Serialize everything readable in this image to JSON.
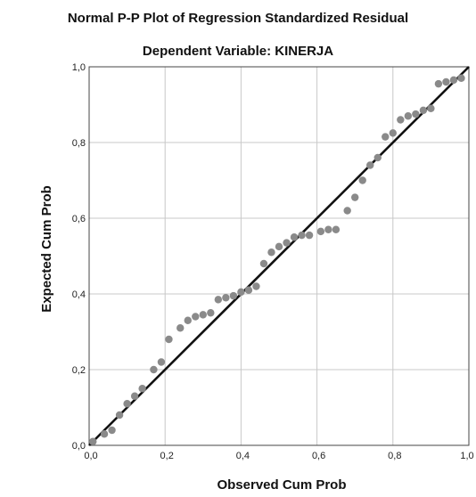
{
  "chart_data": {
    "type": "scatter",
    "title": "Normal P-P Plot of Regression Standardized Residual",
    "subtitle": "Dependent Variable: KINERJA",
    "xlabel": "Observed Cum Prob",
    "ylabel": "Expected Cum Prob",
    "xlim": [
      0,
      1
    ],
    "ylim": [
      0,
      1
    ],
    "x_tick_labels": [
      "0,0",
      "0,2",
      "0,4",
      "0,6",
      "0,8",
      "1,0"
    ],
    "y_tick_labels": [
      "0,0",
      "0,2",
      "0,4",
      "0,6",
      "0,8",
      "1,0"
    ],
    "ticks": [
      0,
      0.2,
      0.4,
      0.6,
      0.8,
      1.0
    ],
    "grid": true,
    "reference_line": [
      [
        0,
        0
      ],
      [
        1,
        1
      ]
    ],
    "marker_color": "#8a8a8a",
    "line_color": "#111111",
    "points": [
      {
        "x": 0.01,
        "y": 0.01
      },
      {
        "x": 0.04,
        "y": 0.03
      },
      {
        "x": 0.06,
        "y": 0.04
      },
      {
        "x": 0.08,
        "y": 0.08
      },
      {
        "x": 0.1,
        "y": 0.11
      },
      {
        "x": 0.12,
        "y": 0.13
      },
      {
        "x": 0.14,
        "y": 0.15
      },
      {
        "x": 0.17,
        "y": 0.2
      },
      {
        "x": 0.19,
        "y": 0.22
      },
      {
        "x": 0.21,
        "y": 0.28
      },
      {
        "x": 0.24,
        "y": 0.31
      },
      {
        "x": 0.26,
        "y": 0.33
      },
      {
        "x": 0.28,
        "y": 0.34
      },
      {
        "x": 0.3,
        "y": 0.345
      },
      {
        "x": 0.32,
        "y": 0.35
      },
      {
        "x": 0.34,
        "y": 0.385
      },
      {
        "x": 0.36,
        "y": 0.39
      },
      {
        "x": 0.38,
        "y": 0.395
      },
      {
        "x": 0.4,
        "y": 0.405
      },
      {
        "x": 0.42,
        "y": 0.41
      },
      {
        "x": 0.44,
        "y": 0.42
      },
      {
        "x": 0.46,
        "y": 0.48
      },
      {
        "x": 0.48,
        "y": 0.51
      },
      {
        "x": 0.5,
        "y": 0.525
      },
      {
        "x": 0.52,
        "y": 0.535
      },
      {
        "x": 0.54,
        "y": 0.55
      },
      {
        "x": 0.56,
        "y": 0.555
      },
      {
        "x": 0.58,
        "y": 0.555
      },
      {
        "x": 0.61,
        "y": 0.565
      },
      {
        "x": 0.63,
        "y": 0.57
      },
      {
        "x": 0.65,
        "y": 0.57
      },
      {
        "x": 0.68,
        "y": 0.62
      },
      {
        "x": 0.7,
        "y": 0.655
      },
      {
        "x": 0.72,
        "y": 0.7
      },
      {
        "x": 0.74,
        "y": 0.74
      },
      {
        "x": 0.76,
        "y": 0.76
      },
      {
        "x": 0.78,
        "y": 0.815
      },
      {
        "x": 0.8,
        "y": 0.825
      },
      {
        "x": 0.82,
        "y": 0.86
      },
      {
        "x": 0.84,
        "y": 0.87
      },
      {
        "x": 0.86,
        "y": 0.875
      },
      {
        "x": 0.88,
        "y": 0.885
      },
      {
        "x": 0.9,
        "y": 0.89
      },
      {
        "x": 0.92,
        "y": 0.955
      },
      {
        "x": 0.94,
        "y": 0.96
      },
      {
        "x": 0.96,
        "y": 0.965
      },
      {
        "x": 0.98,
        "y": 0.97
      }
    ]
  }
}
